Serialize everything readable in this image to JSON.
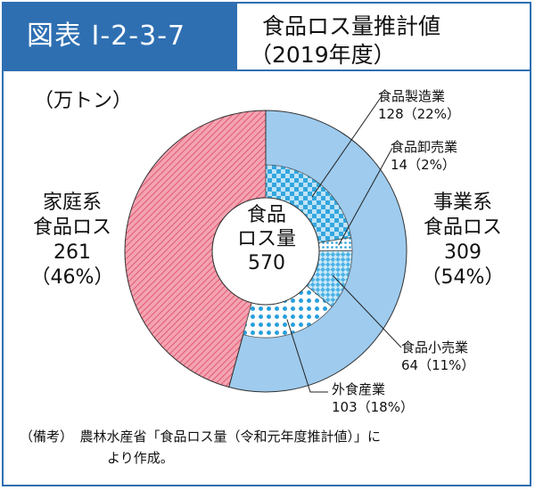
{
  "header": {
    "figure_tag": "図表 I-2-3-7",
    "title_line1": "食品ロス量推計値",
    "title_line2": "（2019年度）"
  },
  "unit_label": "（万トン）",
  "colors": {
    "frame": "#2e6fb2",
    "household": "#e77c8e",
    "business": "#9ecbee",
    "subsector_dots": "#29a0dc"
  },
  "chart_data": {
    "type": "pie",
    "title": "食品ロス量推計値（2019年度）",
    "unit": "万トン",
    "center": {
      "line1": "食品",
      "line2": "ロス量",
      "value": "570",
      "total": 570
    },
    "outer": [
      {
        "key": "business",
        "name_line1": "事業系",
        "name_line2": "食品ロス",
        "value": 309,
        "value_label": "309",
        "pct_label": "（54%）"
      },
      {
        "key": "household",
        "name_line1": "家庭系",
        "name_line2": "食品ロス",
        "value": 261,
        "value_label": "261",
        "pct_label": "（46%）"
      }
    ],
    "inner": [
      {
        "name": "食品製造業",
        "value": 128,
        "detail": "128（22%）",
        "pattern": "checker"
      },
      {
        "name": "食品卸売業",
        "value": 14,
        "detail": "14（2%）",
        "pattern": "dots-small"
      },
      {
        "name": "食品小売業",
        "value": 64,
        "detail": "64（11%）",
        "pattern": "diag-checker"
      },
      {
        "name": "外食産業",
        "value": 103,
        "detail": "103（18%）",
        "pattern": "dots-large"
      }
    ]
  },
  "note": {
    "line1": "（備考）　農林水産省「食品ロス量（令和元年度推計値）」に",
    "line2": "より作成。"
  }
}
